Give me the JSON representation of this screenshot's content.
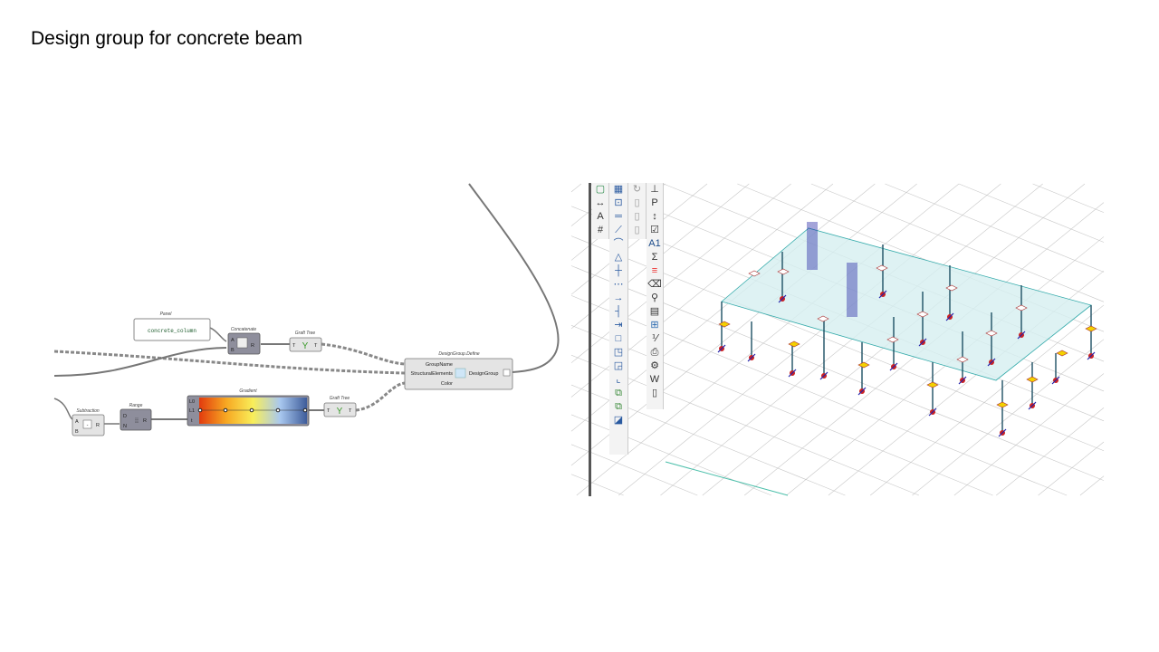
{
  "slide_title": "Design group for concrete beam",
  "grasshopper": {
    "panel": {
      "label": "Panel",
      "value": "concrete_column"
    },
    "concatenate": {
      "label": "Concatenate",
      "inputs": [
        "A",
        "B"
      ],
      "output": "R"
    },
    "graft1": {
      "label": "Graft Tree",
      "input": "T",
      "output": "T"
    },
    "design_group": {
      "label": "DesignGroup.Define",
      "inputs": [
        "GroupName",
        "StructuralElements",
        "Color"
      ],
      "output": "DesignGroup"
    },
    "subtraction": {
      "label": "Subtraction",
      "inputs": [
        "A",
        "B"
      ],
      "output": "R",
      "symbol": "-"
    },
    "range": {
      "label": "Range",
      "inputs": [
        "D",
        "N"
      ],
      "output": "R"
    },
    "gradient": {
      "label": "Gradient",
      "inputs": [
        "L0",
        "L1",
        "t"
      ],
      "colors": [
        "#e23b0e",
        "#f7a722",
        "#f8ee5a",
        "#a9c8ef",
        "#3e5c9a"
      ]
    },
    "graft2": {
      "label": "Graft Tree",
      "input": "T",
      "output": "T"
    }
  },
  "toolbar": {
    "col1": [
      "cube-icon",
      "dimension-icon",
      "A",
      "#"
    ],
    "col3": [
      "A1",
      "Σ"
    ]
  },
  "model": {
    "slab_color": "#d6eff0",
    "column_color": "#1d4f63",
    "grid_color": "#c8c8c8"
  }
}
